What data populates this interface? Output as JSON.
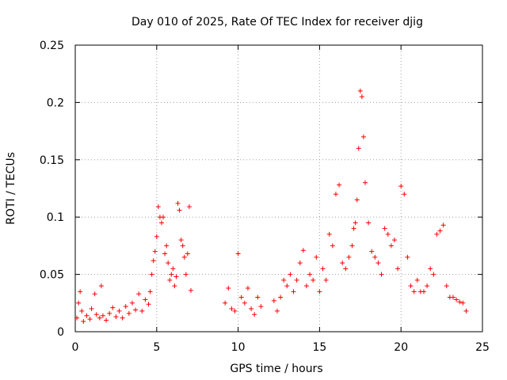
{
  "chart_data": {
    "type": "scatter",
    "title": "Day 010 of 2025, Rate Of TEC Index for receiver djig",
    "xlabel": "GPS time / hours",
    "ylabel": "ROTI / TECUs",
    "xlim": [
      0,
      25
    ],
    "ylim": [
      0,
      0.25
    ],
    "xticks": [
      0,
      5,
      10,
      15,
      20,
      25
    ],
    "xtick_labels": [
      "0",
      "5",
      "10",
      "15",
      "20",
      "25"
    ],
    "yticks": [
      0,
      0.05,
      0.1,
      0.15,
      0.2,
      0.25
    ],
    "ytick_labels": [
      "0",
      "0.05",
      "0.1",
      "0.15",
      "0.2",
      "0.25"
    ],
    "grid": true,
    "marker": "+",
    "marker_color": "#ff0000",
    "series": [
      {
        "name": "ROTI",
        "x": [
          0.1,
          0.2,
          0.3,
          0.4,
          0.5,
          0.7,
          0.9,
          1.0,
          1.2,
          1.3,
          1.5,
          1.6,
          1.7,
          1.9,
          2.1,
          2.3,
          2.5,
          2.7,
          2.9,
          3.1,
          3.3,
          3.5,
          3.7,
          3.9,
          4.1,
          4.3,
          4.5,
          4.6,
          4.7,
          4.8,
          4.9,
          5.0,
          5.1,
          5.2,
          5.3,
          5.4,
          5.5,
          5.6,
          5.7,
          5.8,
          5.9,
          6.0,
          6.1,
          6.2,
          6.3,
          6.4,
          6.5,
          6.6,
          6.7,
          6.8,
          6.9,
          7.0,
          7.1,
          9.2,
          9.4,
          9.6,
          9.8,
          10.0,
          10.2,
          10.4,
          10.6,
          10.8,
          11.0,
          11.2,
          11.4,
          12.2,
          12.4,
          12.6,
          12.8,
          13.0,
          13.2,
          13.4,
          13.6,
          13.8,
          14.0,
          14.2,
          14.4,
          14.6,
          14.8,
          15.0,
          15.2,
          15.4,
          15.6,
          15.8,
          16.0,
          16.2,
          16.4,
          16.6,
          16.8,
          17.0,
          17.1,
          17.2,
          17.3,
          17.4,
          17.5,
          17.6,
          17.7,
          17.8,
          18.0,
          18.2,
          18.4,
          18.6,
          18.8,
          19.0,
          19.2,
          19.4,
          19.6,
          19.8,
          20.0,
          20.2,
          20.4,
          20.6,
          20.8,
          21.0,
          21.2,
          21.4,
          21.6,
          21.8,
          22.0,
          22.2,
          22.4,
          22.6,
          22.8,
          23.0,
          23.2,
          23.4,
          23.6,
          23.8,
          24.0
        ],
        "y": [
          0.012,
          0.025,
          0.035,
          0.018,
          0.009,
          0.014,
          0.011,
          0.02,
          0.033,
          0.015,
          0.012,
          0.04,
          0.014,
          0.01,
          0.016,
          0.021,
          0.013,
          0.018,
          0.012,
          0.022,
          0.016,
          0.025,
          0.019,
          0.033,
          0.018,
          0.028,
          0.024,
          0.035,
          0.05,
          0.062,
          0.07,
          0.083,
          0.109,
          0.1,
          0.095,
          0.1,
          0.068,
          0.075,
          0.06,
          0.045,
          0.05,
          0.055,
          0.04,
          0.048,
          0.112,
          0.106,
          0.08,
          0.075,
          0.065,
          0.05,
          0.068,
          0.109,
          0.036,
          0.025,
          0.038,
          0.02,
          0.018,
          0.068,
          0.03,
          0.025,
          0.038,
          0.02,
          0.015,
          0.03,
          0.022,
          0.027,
          0.018,
          0.03,
          0.045,
          0.04,
          0.05,
          0.035,
          0.045,
          0.06,
          0.071,
          0.04,
          0.05,
          0.045,
          0.065,
          0.035,
          0.055,
          0.045,
          0.085,
          0.075,
          0.12,
          0.128,
          0.06,
          0.055,
          0.065,
          0.075,
          0.09,
          0.095,
          0.115,
          0.16,
          0.21,
          0.205,
          0.17,
          0.13,
          0.095,
          0.07,
          0.065,
          0.06,
          0.05,
          0.09,
          0.085,
          0.075,
          0.08,
          0.055,
          0.127,
          0.12,
          0.065,
          0.04,
          0.035,
          0.045,
          0.035,
          0.035,
          0.04,
          0.055,
          0.05,
          0.085,
          0.088,
          0.093,
          0.04,
          0.03,
          0.03,
          0.028,
          0.026,
          0.025,
          0.018
        ]
      }
    ]
  }
}
